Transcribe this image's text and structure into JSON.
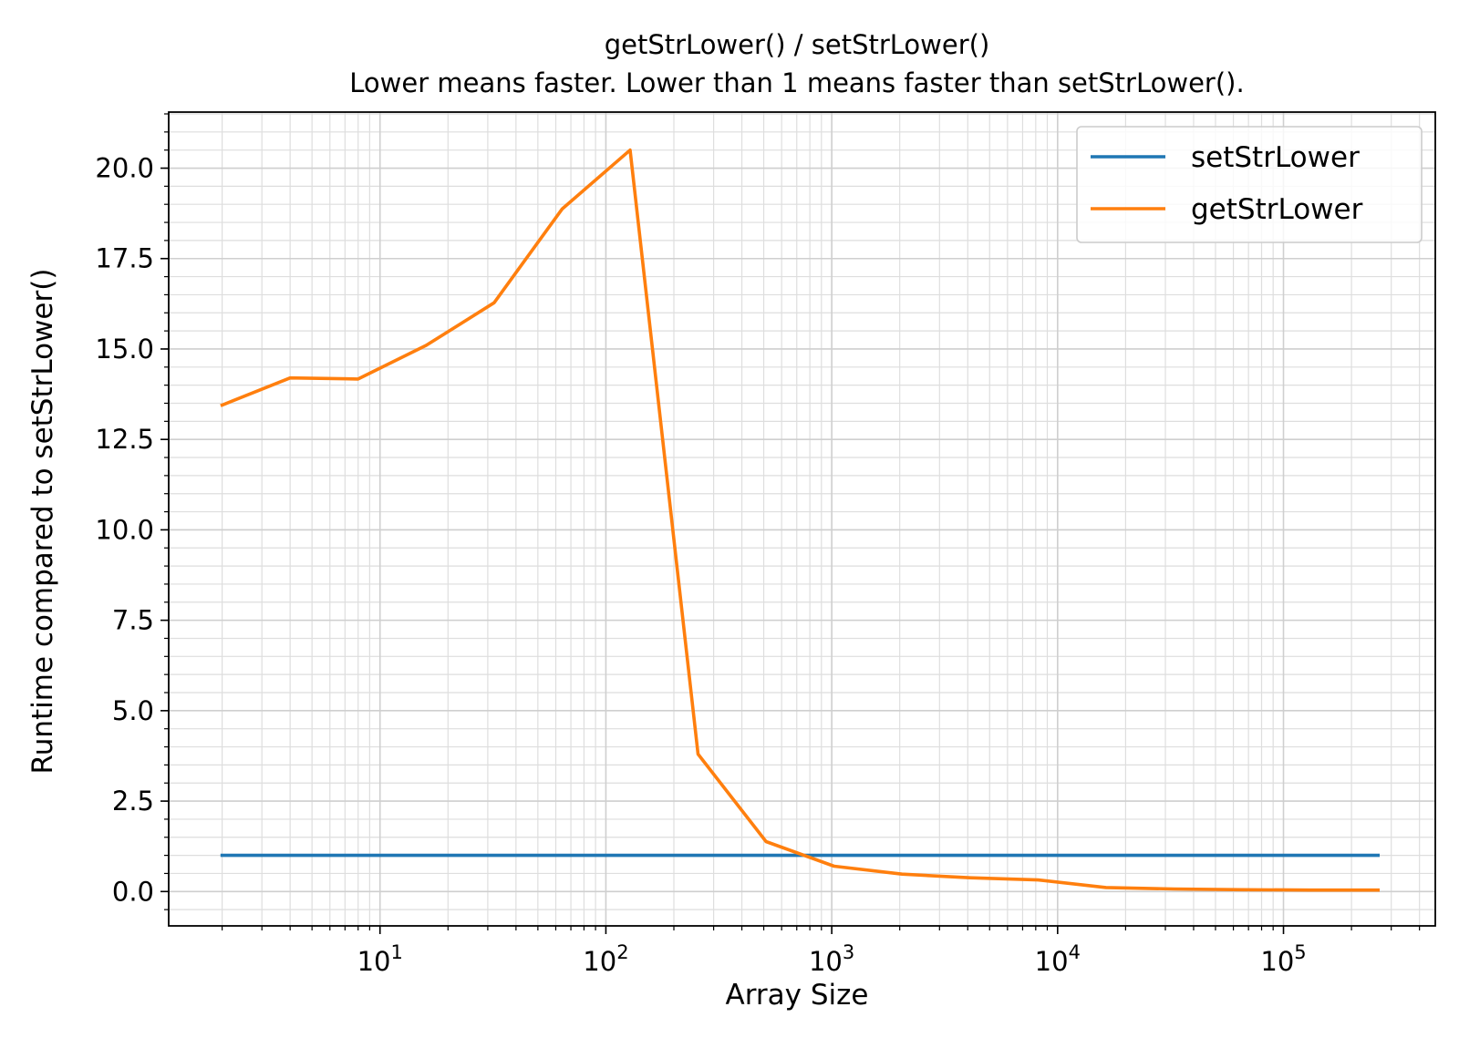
{
  "chart_data": {
    "type": "line",
    "title": "getStrLower() / setStrLower()",
    "subtitle": "Lower means faster. Lower than 1 means faster than setStrLower().",
    "xlabel": "Array Size",
    "ylabel": "Runtime compared to setStrLower()",
    "xscale": "log",
    "xlim": [
      1.16,
      470000
    ],
    "ylim": [
      -0.95,
      21.55
    ],
    "grid": true,
    "legend_position": "upper right",
    "x": [
      2,
      4,
      8,
      16,
      32,
      64,
      128,
      256,
      512,
      1024,
      2048,
      4096,
      8192,
      16384,
      32768,
      65536,
      131072,
      262144
    ],
    "series": [
      {
        "name": "setStrLower",
        "color": "#1f77b4",
        "values": [
          1,
          1,
          1,
          1,
          1,
          1,
          1,
          1,
          1,
          1,
          1,
          1,
          1,
          1,
          1,
          1,
          1,
          1
        ]
      },
      {
        "name": "getStrLower",
        "color": "#ff7f0e",
        "values": [
          13.45,
          14.2,
          14.17,
          15.1,
          16.28,
          18.87,
          20.5,
          3.8,
          1.38,
          0.7,
          0.48,
          0.38,
          0.32,
          0.11,
          0.07,
          0.05,
          0.04,
          0.04
        ]
      }
    ],
    "xticks": [
      {
        "base": "10",
        "exp": "1",
        "value": 10
      },
      {
        "base": "10",
        "exp": "2",
        "value": 100
      },
      {
        "base": "10",
        "exp": "3",
        "value": 1000
      },
      {
        "base": "10",
        "exp": "4",
        "value": 10000
      },
      {
        "base": "10",
        "exp": "5",
        "value": 100000
      }
    ],
    "yticks": [
      {
        "label": "0.0",
        "value": 0
      },
      {
        "label": "2.5",
        "value": 2.5
      },
      {
        "label": "5.0",
        "value": 5
      },
      {
        "label": "7.5",
        "value": 7.5
      },
      {
        "label": "10.0",
        "value": 10
      },
      {
        "label": "12.5",
        "value": 12.5
      },
      {
        "label": "15.0",
        "value": 15
      },
      {
        "label": "17.5",
        "value": 17.5
      },
      {
        "label": "20.0",
        "value": 20
      }
    ]
  }
}
